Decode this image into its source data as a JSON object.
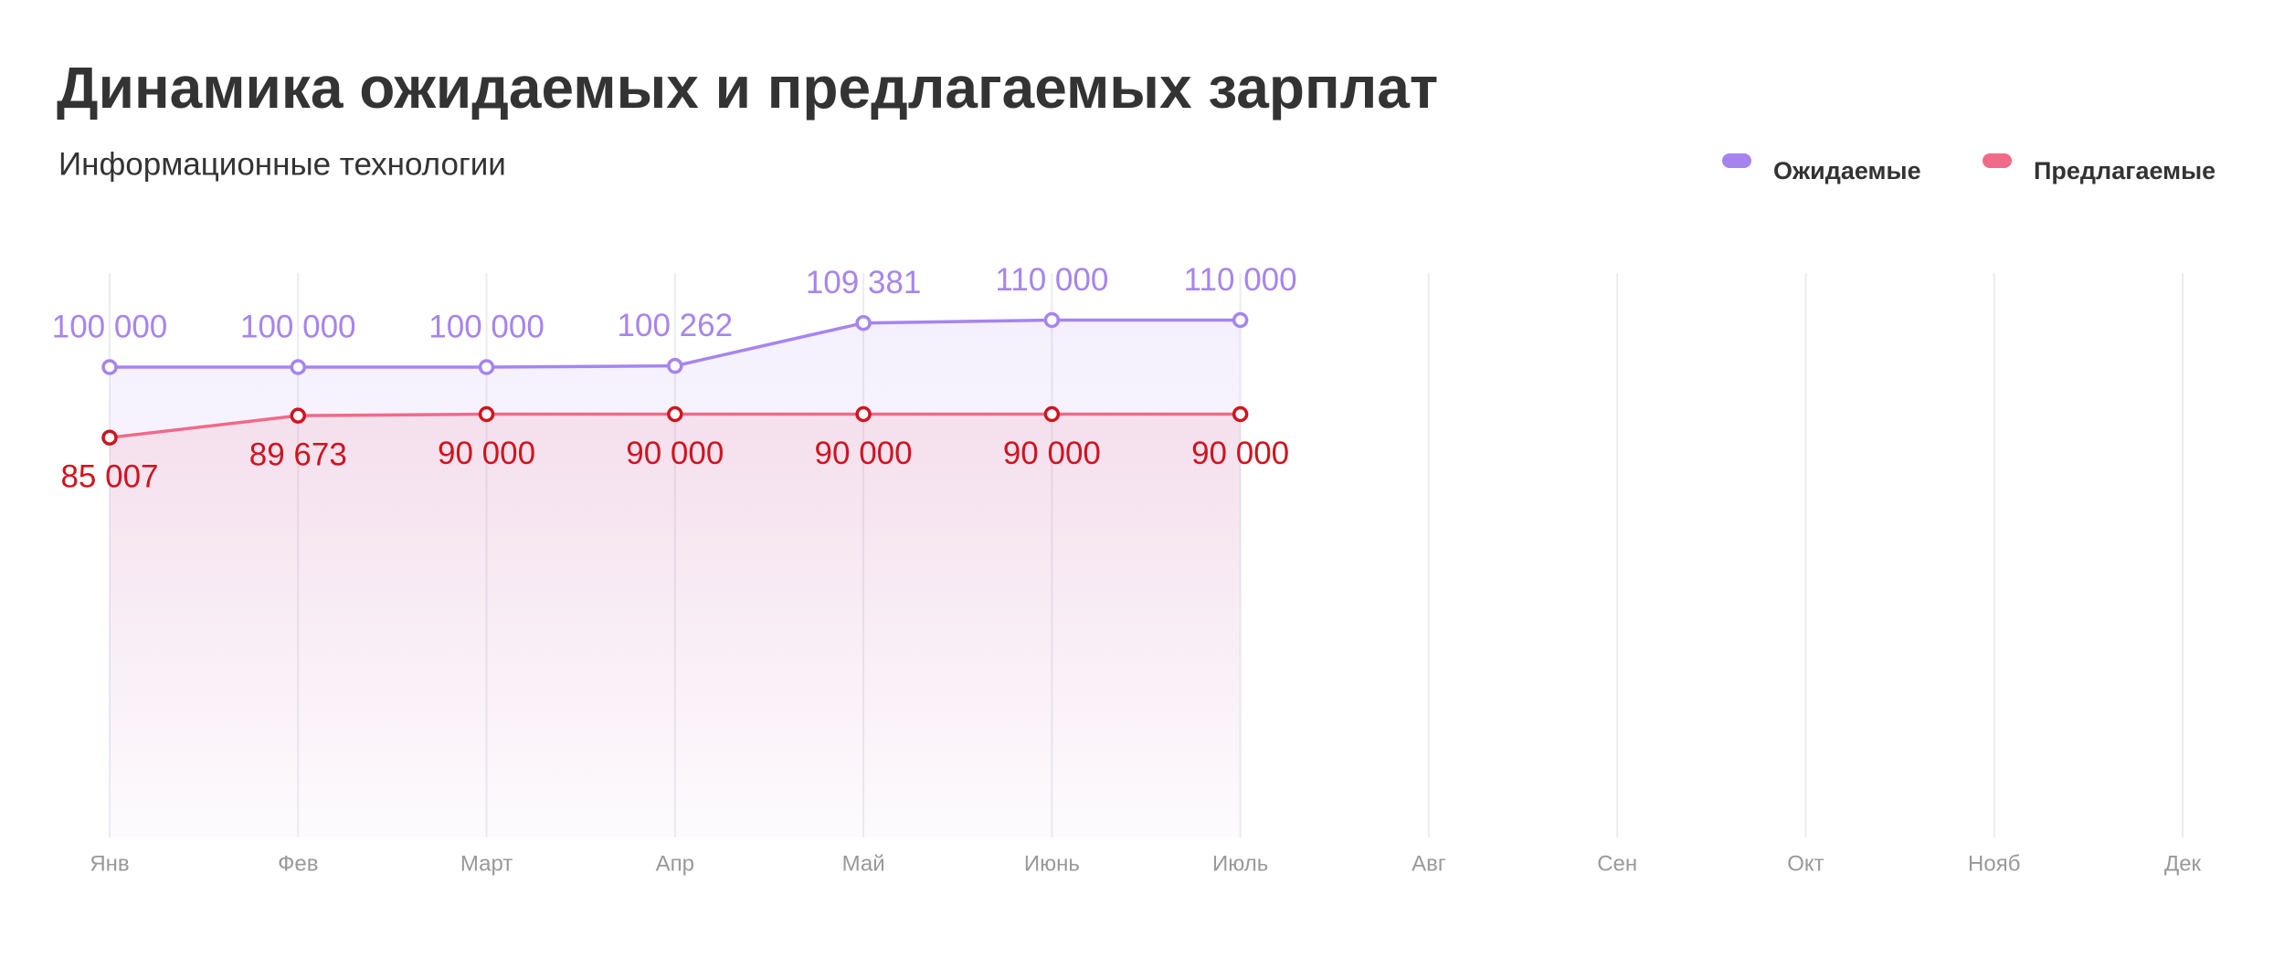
{
  "chart_data": {
    "type": "line",
    "title": "Динамика ожидаемых и предлагаемых зарплат",
    "subtitle": "Информационные технологии",
    "categories": [
      "Янв",
      "Фев",
      "Март",
      "Апр",
      "Май",
      "Июнь",
      "Июль",
      "Авг",
      "Сен",
      "Окт",
      "Нояб",
      "Дек"
    ],
    "series": [
      {
        "name": "Ожидаемые",
        "color": "#a684f0",
        "label_color": "#a684f0",
        "marker_color": "#a684f0",
        "values": [
          100000,
          100000,
          100000,
          100262,
          109381,
          110000,
          110000,
          null,
          null,
          null,
          null,
          null
        ],
        "value_labels": [
          "100 000",
          "100 000",
          "100 000",
          "100 262",
          "109 381",
          "110 000",
          "110 000",
          null,
          null,
          null,
          null,
          null
        ],
        "label_position": "above"
      },
      {
        "name": "Предлагаемые",
        "color": "#f06a8a",
        "label_color": "#d0141e",
        "marker_color": "#d0141e",
        "values": [
          85007,
          89673,
          90000,
          90000,
          90000,
          90000,
          90000,
          null,
          null,
          null,
          null,
          null
        ],
        "value_labels": [
          "85 007",
          "89 673",
          "90 000",
          "90 000",
          "90 000",
          "90 000",
          "90 000",
          null,
          null,
          null,
          null,
          null
        ],
        "label_position": "below"
      }
    ],
    "ylim": [
      0,
      120000
    ],
    "grid": true,
    "legend": "top-right"
  }
}
